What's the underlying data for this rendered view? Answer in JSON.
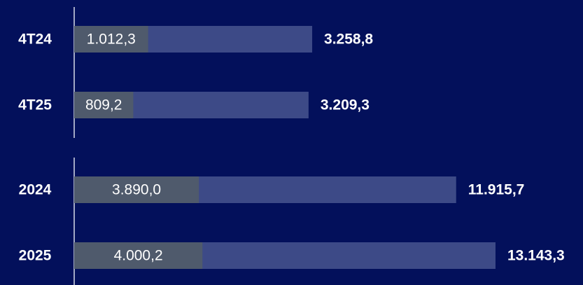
{
  "chart_data": [
    {
      "type": "bar",
      "orientation": "horizontal",
      "categories": [
        "4T24",
        "4T25"
      ],
      "xlim": [
        0,
        5750
      ],
      "series": [
        {
          "color": "#3d4a87",
          "values": [
            3258.8,
            3209.3
          ],
          "value_labels": [
            "3.258,8",
            "3.209,3"
          ]
        },
        {
          "color": "#4f5a6c",
          "values": [
            1012.3,
            809.2
          ],
          "value_labels": [
            "1.012,3",
            "809,2"
          ]
        }
      ]
    },
    {
      "type": "bar",
      "orientation": "horizontal",
      "categories": [
        "2024",
        "2025"
      ],
      "xlim": [
        0,
        13100
      ],
      "series": [
        {
          "color": "#3d4a87",
          "values": [
            11915.7,
            13143.3
          ],
          "value_labels": [
            "11.915,7",
            "13.143,3"
          ]
        },
        {
          "color": "#4f5a6c",
          "values": [
            3890.0,
            4000.2
          ],
          "value_labels": [
            "3.890,0",
            "4.000,2"
          ]
        }
      ]
    }
  ]
}
